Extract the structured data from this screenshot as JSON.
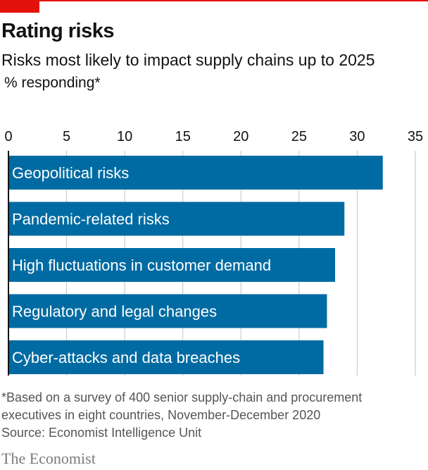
{
  "header": {
    "title": "Rating risks",
    "subtitle": "Risks most likely to impact supply chains up to 2025",
    "unit": "% responding*"
  },
  "footer": {
    "footnote": "*Based on a survey of 400 senior supply-chain and procurement executives in eight countries, November-December 2020",
    "source": "Source: Economist Intelligence Unit",
    "brand": "The Economist"
  },
  "colors": {
    "bar": "#006ba2",
    "accent": "#e3120b",
    "grid": "#b7c6cf"
  },
  "chart_data": {
    "type": "bar",
    "orientation": "horizontal",
    "categories": [
      "Geopolitical risks",
      "Pandemic-related risks",
      "High fluctuations in customer demand",
      "Regulatory and legal changes",
      "Cyber-attacks and data breaches"
    ],
    "values": [
      32.2,
      28.9,
      28.1,
      27.4,
      27.1
    ],
    "xlim": [
      0,
      35
    ],
    "ticks": [
      "0",
      "5",
      "10",
      "15",
      "20",
      "25",
      "30",
      "35"
    ],
    "tick_position": "top",
    "labels_inside_bars": true,
    "grid": true
  }
}
